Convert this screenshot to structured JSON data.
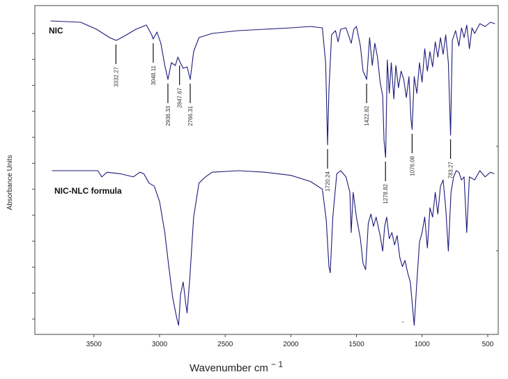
{
  "chart_data": {
    "type": "line",
    "xlabel": "Wavenumber cm",
    "xlabel_superscript": "− 1",
    "ylabel": "Absorbance Units",
    "xlim": [
      3950,
      420
    ],
    "x_reversed": true,
    "x_ticks": [
      3500,
      3000,
      2500,
      2000,
      1500,
      1000,
      500
    ],
    "y_tick_count": 12,
    "line_color": "#1a1a7a",
    "series": [
      {
        "name": "NIC",
        "baseline": 0.0,
        "points": [
          [
            3830,
            0.0
          ],
          [
            3600,
            0.01
          ],
          [
            3480,
            0.06
          ],
          [
            3380,
            0.12
          ],
          [
            3330,
            0.14
          ],
          [
            3270,
            0.11
          ],
          [
            3180,
            0.06
          ],
          [
            3100,
            0.03
          ],
          [
            3060,
            0.1
          ],
          [
            3048,
            0.13
          ],
          [
            3020,
            0.08
          ],
          [
            2990,
            0.16
          ],
          [
            2960,
            0.32
          ],
          [
            2936,
            0.42
          ],
          [
            2910,
            0.3
          ],
          [
            2880,
            0.32
          ],
          [
            2860,
            0.26
          ],
          [
            2847,
            0.29
          ],
          [
            2820,
            0.34
          ],
          [
            2790,
            0.33
          ],
          [
            2766,
            0.42
          ],
          [
            2740,
            0.22
          ],
          [
            2700,
            0.12
          ],
          [
            2600,
            0.09
          ],
          [
            2400,
            0.07
          ],
          [
            2200,
            0.06
          ],
          [
            2000,
            0.05
          ],
          [
            1850,
            0.04
          ],
          [
            1760,
            0.05
          ],
          [
            1735,
            0.3
          ],
          [
            1720,
            0.89
          ],
          [
            1710,
            0.5
          ],
          [
            1690,
            0.1
          ],
          [
            1660,
            0.07
          ],
          [
            1640,
            0.15
          ],
          [
            1620,
            0.06
          ],
          [
            1580,
            0.05
          ],
          [
            1540,
            0.16
          ],
          [
            1520,
            0.06
          ],
          [
            1500,
            0.04
          ],
          [
            1470,
            0.18
          ],
          [
            1450,
            0.36
          ],
          [
            1422,
            0.42
          ],
          [
            1400,
            0.12
          ],
          [
            1380,
            0.32
          ],
          [
            1360,
            0.16
          ],
          [
            1340,
            0.26
          ],
          [
            1320,
            0.44
          ],
          [
            1300,
            0.54
          ],
          [
            1290,
            0.86
          ],
          [
            1278,
            0.98
          ],
          [
            1265,
            0.28
          ],
          [
            1250,
            0.52
          ],
          [
            1235,
            0.3
          ],
          [
            1215,
            0.56
          ],
          [
            1200,
            0.32
          ],
          [
            1180,
            0.48
          ],
          [
            1160,
            0.36
          ],
          [
            1140,
            0.42
          ],
          [
            1120,
            0.55
          ],
          [
            1100,
            0.4
          ],
          [
            1085,
            0.7
          ],
          [
            1076,
            0.78
          ],
          [
            1060,
            0.4
          ],
          [
            1040,
            0.52
          ],
          [
            1020,
            0.3
          ],
          [
            1000,
            0.44
          ],
          [
            980,
            0.2
          ],
          [
            960,
            0.36
          ],
          [
            940,
            0.22
          ],
          [
            920,
            0.33
          ],
          [
            900,
            0.15
          ],
          [
            880,
            0.26
          ],
          [
            860,
            0.12
          ],
          [
            840,
            0.24
          ],
          [
            820,
            0.1
          ],
          [
            800,
            0.3
          ],
          [
            783,
            0.82
          ],
          [
            770,
            0.14
          ],
          [
            745,
            0.07
          ],
          [
            720,
            0.18
          ],
          [
            700,
            0.05
          ],
          [
            680,
            0.12
          ],
          [
            660,
            0.03
          ],
          [
            640,
            0.2
          ],
          [
            620,
            0.05
          ],
          [
            600,
            0.09
          ],
          [
            560,
            0.02
          ],
          [
            520,
            0.04
          ],
          [
            480,
            0.01
          ],
          [
            445,
            0.02
          ]
        ],
        "peak_labels": [
          {
            "x": 3332.27,
            "label": "3332.27"
          },
          {
            "x": 3048.11,
            "label": "3048.11"
          },
          {
            "x": 2936.33,
            "label": "2936.33"
          },
          {
            "x": 2847.67,
            "label": "2847.67"
          },
          {
            "x": 2766.31,
            "label": "2766.31"
          },
          {
            "x": 1720.24,
            "label": "1720.24"
          },
          {
            "x": 1422.82,
            "label": "1422.82"
          },
          {
            "x": 1278.82,
            "label": "1278.82"
          },
          {
            "x": 1076.08,
            "label": "1076.08"
          },
          {
            "x": 783.27,
            "label": "783.27"
          }
        ]
      },
      {
        "name": "NIC-NLC formula",
        "baseline": 0.0,
        "points": [
          [
            3820,
            0.0
          ],
          [
            3600,
            0.0
          ],
          [
            3470,
            0.0
          ],
          [
            3440,
            0.04
          ],
          [
            3400,
            0.01
          ],
          [
            3300,
            0.02
          ],
          [
            3200,
            0.04
          ],
          [
            3150,
            0.01
          ],
          [
            3120,
            0.02
          ],
          [
            3080,
            0.08
          ],
          [
            3040,
            0.1
          ],
          [
            3000,
            0.2
          ],
          [
            2960,
            0.4
          ],
          [
            2930,
            0.62
          ],
          [
            2900,
            0.82
          ],
          [
            2870,
            0.95
          ],
          [
            2855,
            1.0
          ],
          [
            2840,
            0.8
          ],
          [
            2820,
            0.72
          ],
          [
            2800,
            0.86
          ],
          [
            2790,
            0.92
          ],
          [
            2770,
            0.7
          ],
          [
            2740,
            0.3
          ],
          [
            2700,
            0.08
          ],
          [
            2650,
            0.04
          ],
          [
            2600,
            0.01
          ],
          [
            2400,
            0.0
          ],
          [
            2200,
            0.01
          ],
          [
            2000,
            0.03
          ],
          [
            1850,
            0.07
          ],
          [
            1760,
            0.12
          ],
          [
            1730,
            0.32
          ],
          [
            1710,
            0.62
          ],
          [
            1700,
            0.66
          ],
          [
            1680,
            0.3
          ],
          [
            1650,
            0.02
          ],
          [
            1620,
            0.0
          ],
          [
            1580,
            0.04
          ],
          [
            1550,
            0.14
          ],
          [
            1540,
            0.4
          ],
          [
            1525,
            0.14
          ],
          [
            1500,
            0.3
          ],
          [
            1470,
            0.44
          ],
          [
            1450,
            0.6
          ],
          [
            1430,
            0.64
          ],
          [
            1410,
            0.34
          ],
          [
            1390,
            0.28
          ],
          [
            1370,
            0.36
          ],
          [
            1350,
            0.3
          ],
          [
            1320,
            0.42
          ],
          [
            1300,
            0.52
          ],
          [
            1285,
            0.36
          ],
          [
            1270,
            0.3
          ],
          [
            1250,
            0.44
          ],
          [
            1230,
            0.4
          ],
          [
            1210,
            0.48
          ],
          [
            1190,
            0.42
          ],
          [
            1170,
            0.56
          ],
          [
            1150,
            0.62
          ],
          [
            1130,
            0.58
          ],
          [
            1110,
            0.66
          ],
          [
            1090,
            0.72
          ],
          [
            1075,
            0.86
          ],
          [
            1060,
            1.0
          ],
          [
            1040,
            0.72
          ],
          [
            1020,
            0.46
          ],
          [
            1000,
            0.4
          ],
          [
            980,
            0.3
          ],
          [
            960,
            0.5
          ],
          [
            940,
            0.24
          ],
          [
            920,
            0.3
          ],
          [
            900,
            0.14
          ],
          [
            880,
            0.28
          ],
          [
            860,
            0.1
          ],
          [
            840,
            0.06
          ],
          [
            820,
            0.24
          ],
          [
            800,
            0.52
          ],
          [
            780,
            0.14
          ],
          [
            760,
            0.04
          ],
          [
            740,
            0.0
          ],
          [
            720,
            0.01
          ],
          [
            700,
            0.06
          ],
          [
            680,
            0.04
          ],
          [
            660,
            0.4
          ],
          [
            640,
            0.04
          ],
          [
            600,
            0.06
          ],
          [
            560,
            0.0
          ],
          [
            520,
            0.04
          ],
          [
            480,
            0.01
          ],
          [
            450,
            0.02
          ]
        ]
      }
    ]
  }
}
